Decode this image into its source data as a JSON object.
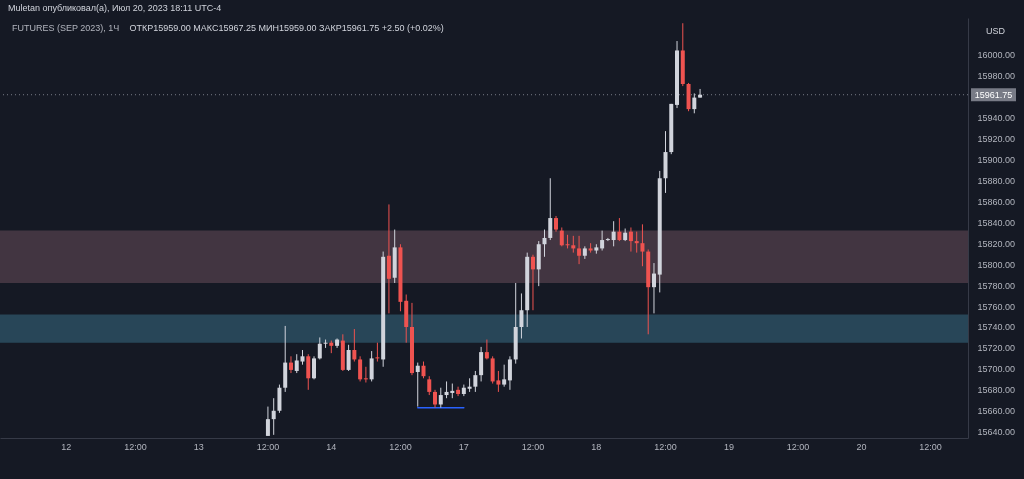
{
  "chart_data": {
    "type": "candlestick",
    "title": "Muletan опубликовал(а), Июл 20, 2023 18:11 UTC-4",
    "subtitle": "FUTURES (SEP 2023), 1Ч",
    "ylabel": "USD",
    "annotations": [
      "ОТКР15959.00 МАКС15967.25 МИН15959.00 ЗАКР15961.75 +2.50 (+0.02%)"
    ],
    "categories": [
      null,
      null,
      null,
      null,
      null,
      null,
      null,
      null,
      null,
      null,
      null,
      "12",
      null,
      null,
      null,
      null,
      null,
      null,
      null,
      null,
      null,
      null,
      null,
      "12:00",
      null,
      null,
      null,
      null,
      null,
      null,
      null,
      null,
      null,
      null,
      "13",
      null,
      null,
      null,
      null,
      null,
      null,
      null,
      null,
      null,
      null,
      null,
      "12:00",
      null,
      null,
      null,
      null,
      null,
      null,
      null,
      null,
      null,
      null,
      "14",
      null,
      null,
      null,
      null,
      null,
      null,
      null,
      null,
      null,
      null,
      null,
      "12:00",
      null,
      null,
      null,
      null,
      null,
      null,
      null,
      null,
      null,
      null,
      "17",
      null,
      null,
      null,
      null,
      null,
      null,
      null,
      null,
      null,
      null,
      null,
      "12:00",
      null,
      null,
      null,
      null,
      null,
      null,
      null,
      null,
      null,
      null,
      "18",
      null,
      null,
      null,
      null,
      null,
      null,
      null,
      null,
      null,
      null,
      null,
      "12:00",
      null,
      null,
      null,
      null,
      null,
      null,
      null,
      null,
      null,
      null,
      "19",
      null,
      null,
      null,
      null,
      null,
      null,
      null,
      null,
      null,
      null,
      null,
      "12:00",
      null,
      null,
      null,
      null,
      null,
      null,
      null,
      null,
      null,
      null,
      "20",
      null,
      null,
      null,
      null,
      null,
      null,
      null,
      null,
      null,
      null,
      null,
      "12:00",
      null,
      null,
      null,
      null,
      null,
      null
    ],
    "ohlc": [
      null,
      null,
      null,
      null,
      null,
      null,
      null,
      null,
      null,
      null,
      null,
      null,
      null,
      null,
      null,
      null,
      null,
      null,
      null,
      null,
      null,
      null,
      null,
      null,
      null,
      null,
      null,
      null,
      null,
      null,
      null,
      null,
      null,
      null,
      null,
      null,
      null,
      null,
      null,
      null,
      null,
      null,
      null,
      null,
      null,
      null,
      [
        15636,
        15664,
        15636,
        15652
      ],
      [
        15652,
        15672,
        15637,
        15660
      ],
      [
        15660,
        15685,
        15658,
        15682
      ],
      [
        15682,
        15741,
        15678,
        15706
      ],
      [
        15706,
        15712,
        15696,
        15699
      ],
      [
        15698,
        15714,
        15696,
        15708
      ],
      [
        15707,
        15718,
        15704,
        15712
      ],
      [
        15712,
        15714,
        15680,
        15691
      ],
      [
        15691,
        15712,
        15690,
        15710
      ],
      [
        15710,
        15730,
        15709,
        15724
      ],
      [
        15724,
        15728,
        15720,
        15725
      ],
      [
        15725,
        15727,
        15715,
        15722
      ],
      [
        15722,
        15729,
        15720,
        15728
      ],
      [
        15727,
        15733,
        15698,
        15699
      ],
      [
        15699,
        15723,
        15698,
        15718
      ],
      [
        15718,
        15738,
        15707,
        15709
      ],
      [
        15709,
        15712,
        15688,
        15690
      ],
      [
        15691,
        15702,
        15687,
        15690
      ],
      [
        15690,
        15717,
        15688,
        15710
      ],
      [
        15711,
        15725,
        15707,
        15710
      ],
      [
        15709,
        15812,
        15702,
        15807
      ],
      [
        15808,
        15857,
        15753,
        15786
      ],
      [
        15787,
        15833,
        15782,
        15816
      ],
      [
        15816,
        15819,
        15755,
        15764
      ],
      [
        15765,
        15771,
        15725,
        15740
      ],
      [
        15740,
        15763,
        15694,
        15696
      ],
      [
        15697,
        15706,
        15664,
        15703
      ],
      [
        15703,
        15707,
        15691,
        15693
      ],
      [
        15690,
        15693,
        15675,
        15678
      ],
      [
        15678,
        15680,
        15663,
        15666
      ],
      [
        15666,
        15682,
        15663,
        15675
      ],
      [
        15675,
        15688,
        15672,
        15678
      ],
      [
        15677,
        15686,
        15672,
        15679
      ],
      [
        15680,
        15683,
        15674,
        15676
      ],
      [
        15676,
        15685,
        15674,
        15682
      ],
      [
        15681,
        15691,
        15678,
        15683
      ],
      [
        15683,
        15698,
        15678,
        15694
      ],
      [
        15694,
        15721,
        15688,
        15716
      ],
      [
        15716,
        15728,
        15709,
        15710
      ],
      [
        15710,
        15712,
        15686,
        15688
      ],
      [
        15689,
        15698,
        15678,
        15685
      ],
      [
        15685,
        15704,
        15683,
        15690
      ],
      [
        15689,
        15712,
        15680,
        15709
      ],
      [
        15709,
        15782,
        15705,
        15740
      ],
      [
        15740,
        15772,
        15729,
        15756
      ],
      [
        15756,
        15811,
        15740,
        15807
      ],
      [
        15807,
        15809,
        15756,
        15795
      ],
      [
        15795,
        15822,
        15779,
        15819
      ],
      [
        15819,
        15833,
        15807,
        15825
      ],
      [
        15825,
        15882,
        15823,
        15844
      ],
      [
        15844,
        15846,
        15831,
        15833
      ],
      [
        15832,
        15835,
        15817,
        15818
      ],
      [
        15819,
        15828,
        15815,
        15818
      ],
      [
        15818,
        15827,
        15811,
        15815
      ],
      [
        15815,
        15827,
        15800,
        15808
      ],
      [
        15808,
        15817,
        15805,
        15815
      ],
      [
        15815,
        15820,
        15811,
        15813
      ],
      [
        15813,
        15819,
        15810,
        15816
      ],
      [
        15815,
        15832,
        15813,
        15823
      ],
      [
        15823,
        15825,
        15822,
        15824
      ],
      [
        15823,
        15841,
        15817,
        15831
      ],
      [
        15831,
        15844,
        15822,
        15823
      ],
      [
        15823,
        15834,
        15822,
        15830
      ],
      [
        15831,
        15835,
        15812,
        15822
      ],
      [
        15822,
        15831,
        15811,
        15820
      ],
      [
        15820,
        15838,
        15798,
        15812
      ],
      [
        15812,
        15814,
        15733,
        15778
      ],
      [
        15778,
        15801,
        15753,
        15791
      ],
      [
        15790,
        15889,
        15773,
        15882
      ],
      [
        15882,
        15927,
        15868,
        15907
      ],
      [
        15907,
        15953,
        15905,
        15953
      ],
      [
        15952,
        16013,
        15949,
        16004
      ],
      [
        16004,
        16030,
        15970,
        15972
      ],
      [
        15972,
        15973,
        15946,
        15948
      ],
      [
        15948,
        15963,
        15944,
        15959
      ],
      [
        15959,
        15967.25,
        15959,
        15961.75
      ],
      null,
      null,
      null,
      null,
      null,
      null,
      null,
      null,
      null,
      null,
      null,
      null,
      null,
      null,
      null,
      null,
      null,
      null,
      null,
      null,
      null,
      null,
      null,
      null,
      null,
      null,
      null,
      null,
      null,
      null,
      null,
      null,
      null,
      null,
      null,
      null,
      null,
      null,
      null,
      null,
      null,
      null,
      null,
      null,
      null,
      null
    ],
    "colors": [
      null,
      null,
      null,
      null,
      null,
      null,
      null,
      null,
      null,
      null,
      null,
      null,
      null,
      null,
      null,
      null,
      null,
      null,
      null,
      null,
      null,
      null,
      null,
      null,
      null,
      null,
      null,
      null,
      null,
      null,
      null,
      null,
      null,
      null,
      null,
      null,
      null,
      null,
      null,
      null,
      null,
      null,
      null,
      null,
      null,
      null,
      "#d1d4dc",
      "#d1d4dc",
      "#d1d4dc",
      "#d1d4dc",
      "#ef5350",
      "#d1d4dc",
      "#d1d4dc",
      "#ef5350",
      "#d1d4dc",
      "#d1d4dc",
      "#d1d4dc",
      "#ef5350",
      "#d1d4dc",
      "#ef5350",
      "#d1d4dc",
      "#ef5350",
      "#ef5350",
      "#ef5350",
      "#d1d4dc",
      "#ef5350",
      "#d1d4dc",
      "#ef5350",
      "#d1d4dc",
      "#ef5350",
      "#ef5350",
      "#ef5350",
      "#d1d4dc",
      "#ef5350",
      "#ef5350",
      "#ef5350",
      "#d1d4dc",
      "#d1d4dc",
      "#d1d4dc",
      "#ef5350",
      "#d1d4dc",
      "#d1d4dc",
      "#d1d4dc",
      "#d1d4dc",
      "#ef5350",
      "#ef5350",
      "#ef5350",
      "#d1d4dc",
      "#d1d4dc",
      "#d1d4dc",
      "#d1d4dc",
      "#d1d4dc",
      "#ef5350",
      "#d1d4dc",
      "#d1d4dc",
      "#d1d4dc",
      "#ef5350",
      "#ef5350",
      "#ef5350",
      "#ef5350",
      "#ef5350",
      "#d1d4dc",
      "#ef5350",
      "#d1d4dc",
      "#d1d4dc",
      "#d1d4dc",
      "#d1d4dc",
      "#ef5350",
      "#d1d4dc",
      "#ef5350",
      "#ef5350",
      "#ef5350",
      "#ef5350",
      "#d1d4dc",
      "#d1d4dc",
      "#d1d4dc",
      "#d1d4dc",
      "#d1d4dc",
      "#ef5350",
      "#ef5350",
      "#d1d4dc",
      "#d1d4dc",
      null,
      null,
      null,
      null,
      null,
      null,
      null,
      null,
      null,
      null,
      null,
      null,
      null,
      null,
      null,
      null,
      null,
      null,
      null,
      null,
      null,
      null,
      null,
      null,
      null,
      null,
      null,
      null,
      null,
      null,
      null,
      null,
      null,
      null,
      null,
      null,
      null,
      null,
      null,
      null,
      null,
      null,
      null,
      null,
      null,
      null
    ],
    "series": [
      {
        "type": "line",
        "color": "#2962ff",
        "values": [
          null,
          null,
          null,
          null,
          null,
          null,
          null,
          null,
          null,
          null,
          null,
          null,
          null,
          null,
          null,
          null,
          null,
          null,
          null,
          null,
          null,
          null,
          null,
          null,
          null,
          null,
          null,
          null,
          null,
          null,
          null,
          null,
          null,
          null,
          null,
          null,
          null,
          null,
          null,
          null,
          null,
          null,
          null,
          null,
          null,
          null,
          null,
          null,
          null,
          null,
          null,
          null,
          null,
          null,
          null,
          null,
          null,
          null,
          null,
          null,
          null,
          null,
          null,
          null,
          null,
          null,
          null,
          null,
          null,
          null,
          null,
          null,
          15663,
          15663,
          15663,
          15663,
          15663,
          15663,
          15663,
          15663,
          15663,
          null,
          null,
          null,
          null,
          null,
          null,
          null,
          null,
          null,
          null,
          null,
          null,
          null,
          null,
          null,
          null,
          null,
          null,
          null,
          null,
          null,
          null,
          null,
          null,
          null,
          null,
          null,
          null,
          null,
          null,
          null,
          null,
          null,
          null,
          null,
          null,
          null,
          null,
          null,
          null,
          null,
          null,
          null,
          null,
          null,
          null,
          null,
          null,
          null,
          null,
          null,
          null,
          null,
          null,
          null,
          null,
          null,
          null,
          null,
          null,
          null,
          null,
          null,
          null,
          null,
          null,
          null,
          null,
          null,
          null,
          null,
          null,
          null,
          null,
          null,
          null,
          null,
          null,
          null,
          null,
          null,
          null,
          null,
          null,
          null,
          null,
          null
        ]
      }
    ],
    "ylim": [
      15634,
      16035
    ],
    "yticks": [
      {
        "value": 15640,
        "label": "15640.00"
      },
      {
        "value": 15660,
        "label": "15660.00"
      },
      {
        "value": 15680,
        "label": "15680.00"
      },
      {
        "value": 15700,
        "label": "15700.00"
      },
      {
        "value": 15720,
        "label": "15720.00"
      },
      {
        "value": 15740,
        "label": "15740.00"
      },
      {
        "value": 15760,
        "label": "15760.00"
      },
      {
        "value": 15780,
        "label": "15780.00"
      },
      {
        "value": 15800,
        "label": "15800.00"
      },
      {
        "value": 15820,
        "label": "15820.00"
      },
      {
        "value": 15840,
        "label": "15840.00"
      },
      {
        "value": 15860,
        "label": "15860.00"
      },
      {
        "value": 15880,
        "label": "15880.00"
      },
      {
        "value": 15900,
        "label": "15900.00"
      },
      {
        "value": 15920,
        "label": "15920.00"
      },
      {
        "value": 15940,
        "label": "15940.00"
      },
      {
        "value": 15980,
        "label": "15980.00"
      },
      {
        "value": 16000,
        "label": "16000.00"
      }
    ],
    "ref_lines": [
      {
        "axis": "y",
        "value": 15961.75,
        "label": "15961.75",
        "color": "#787b86",
        "line_style": "dotted"
      }
    ],
    "bands": [
      {
        "axis": "y",
        "from": 15782,
        "to": 15832,
        "color": "#4a3b47"
      },
      {
        "axis": "y",
        "from": 15725,
        "to": 15752,
        "color": "#2b4f61"
      }
    ]
  }
}
